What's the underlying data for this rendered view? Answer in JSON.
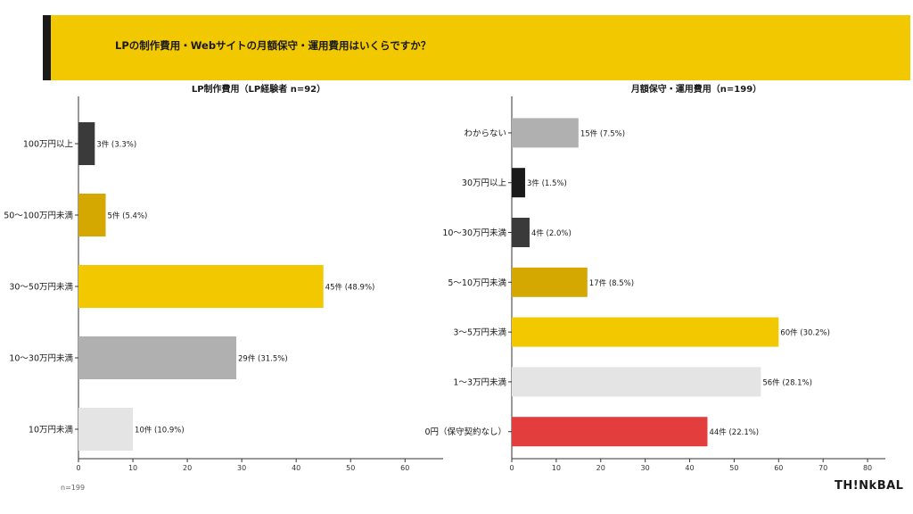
{
  "header": {
    "title": "LPの制作費用・Webサイトの月額保守・運用費用はいくらですか？"
  },
  "footnote": "n=199",
  "logo": "TH!NkBAL",
  "colors": {
    "banner": "#f2c800",
    "dark": "#3a3a3a",
    "black": "#1a1a1a",
    "mustard": "#d4a800",
    "yellow": "#f2c800",
    "gray": "#b0b0b0",
    "lightgray": "#e4e4e4",
    "red": "#e33e3e"
  },
  "chart_data": [
    {
      "type": "bar",
      "orientation": "horizontal",
      "title": "LP制作費用（LP経験者 n=92）",
      "categories": [
        "100万円以上",
        "50〜100万円未満",
        "30〜50万円未満",
        "10〜30万円未満",
        "10万円未満"
      ],
      "values": [
        3,
        5,
        45,
        29,
        10
      ],
      "data_labels": [
        "3件 (3.3%)",
        "5件 (5.4%)",
        "45件 (48.9%)",
        "29件 (31.5%)",
        "10件 (10.9%)"
      ],
      "bar_colors": [
        "#3a3a3a",
        "#d4a800",
        "#f2c800",
        "#b0b0b0",
        "#e4e4e4"
      ],
      "xlim": [
        0,
        67
      ],
      "xticks": [
        0,
        10,
        20,
        30,
        40,
        50,
        60
      ],
      "grid": false
    },
    {
      "type": "bar",
      "orientation": "horizontal",
      "title": "月額保守・運用費用（n=199）",
      "categories": [
        "わからない",
        "30万円以上",
        "10〜30万円未満",
        "5〜10万円未満",
        "3〜5万円未満",
        "1〜3万円未満",
        "0円（保守契約なし）"
      ],
      "values": [
        15,
        3,
        4,
        17,
        60,
        56,
        44
      ],
      "data_labels": [
        "15件 (7.5%)",
        "3件 (1.5%)",
        "4件 (2.0%)",
        "17件 (8.5%)",
        "60件 (30.2%)",
        "56件 (28.1%)",
        "44件 (22.1%)"
      ],
      "bar_colors": [
        "#b0b0b0",
        "#1a1a1a",
        "#3a3a3a",
        "#d4a800",
        "#f2c800",
        "#e4e4e4",
        "#e33e3e"
      ],
      "xlim": [
        0,
        84
      ],
      "xticks": [
        0,
        10,
        20,
        30,
        40,
        50,
        60,
        70,
        80
      ],
      "grid": false
    }
  ]
}
